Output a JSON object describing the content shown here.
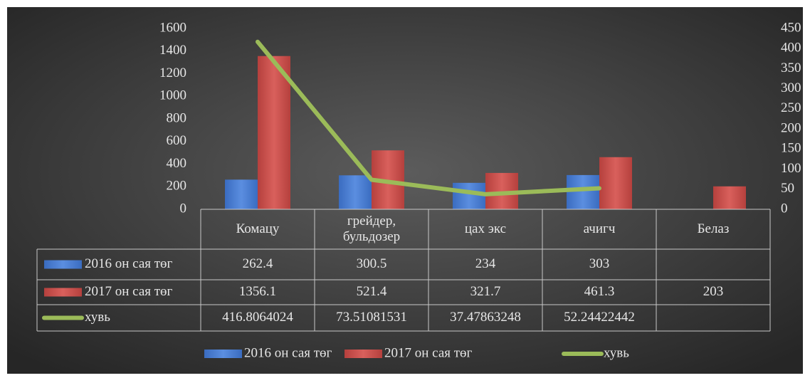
{
  "chart_data": {
    "type": "bar",
    "categories": [
      "Комацу",
      "грейдер, бульдозер",
      "цах экс",
      "ачигч",
      "Белаз"
    ],
    "series": [
      {
        "name": "2016 он сая төг",
        "color": "#4a7ed0",
        "type": "bar",
        "values": [
          262.4,
          300.5,
          234,
          303,
          null
        ]
      },
      {
        "name": "2017 он сая төг",
        "color": "#c9504d",
        "type": "bar",
        "values": [
          1356.1,
          521.4,
          321.7,
          461.3,
          203
        ]
      },
      {
        "name": "хувь",
        "color": "#9bbb59",
        "type": "line",
        "axis": "y2",
        "values": [
          416.8064024,
          73.51081531,
          37.47863248,
          52.24422442,
          null
        ]
      }
    ],
    "ylim": [
      0,
      1600
    ],
    "yticks": [
      0,
      200,
      400,
      600,
      800,
      1000,
      1200,
      1400,
      1600
    ],
    "y2lim": [
      0,
      450
    ],
    "y2ticks": [
      0,
      50,
      100,
      150,
      200,
      250,
      300,
      350,
      400,
      450
    ],
    "legend": "bottom",
    "data_table": true
  }
}
